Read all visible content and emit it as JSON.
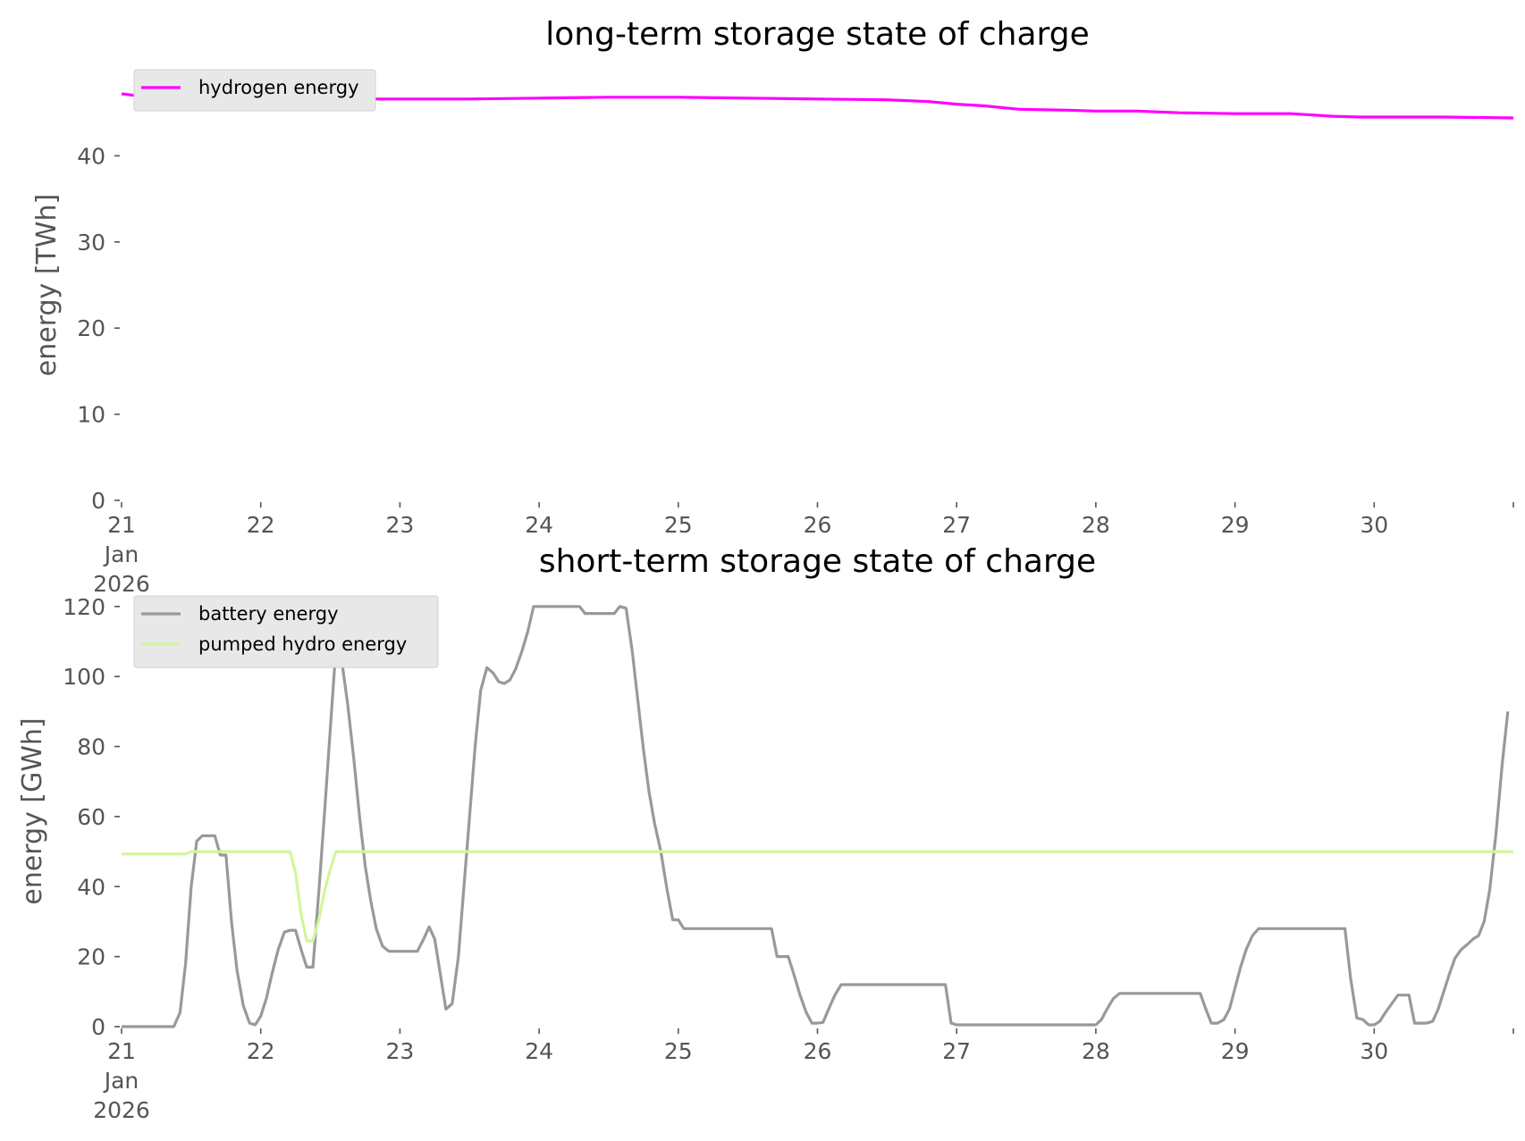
{
  "chart_data": [
    {
      "type": "line",
      "title": "long-term storage state of charge",
      "ylabel": "energy [TWh]",
      "xlabel": "",
      "ylim": [
        0,
        50
      ],
      "xlim": [
        0,
        10
      ],
      "yticks": [
        0,
        10,
        20,
        30,
        40
      ],
      "xtick_labels": [
        {
          "x": 0,
          "lines": [
            "21",
            "Jan",
            "2026"
          ]
        },
        {
          "x": 1,
          "lines": [
            "22"
          ]
        },
        {
          "x": 2,
          "lines": [
            "23"
          ]
        },
        {
          "x": 3,
          "lines": [
            "24"
          ]
        },
        {
          "x": 4,
          "lines": [
            "25"
          ]
        },
        {
          "x": 5,
          "lines": [
            "26"
          ]
        },
        {
          "x": 6,
          "lines": [
            "27"
          ]
        },
        {
          "x": 7,
          "lines": [
            "28"
          ]
        },
        {
          "x": 8,
          "lines": [
            "29"
          ]
        },
        {
          "x": 9,
          "lines": [
            "30"
          ]
        }
      ],
      "legend": "top-left",
      "grid": false,
      "series": [
        {
          "name": "hydrogen energy",
          "color": "#ff00ff",
          "points": [
            [
              0,
              47.2
            ],
            [
              0.2,
              46.8
            ],
            [
              0.5,
              46.6
            ],
            [
              1,
              46.6
            ],
            [
              1.5,
              46.6
            ],
            [
              2,
              46.6
            ],
            [
              2.5,
              46.6
            ],
            [
              3,
              46.7
            ],
            [
              3.5,
              46.8
            ],
            [
              4,
              46.8
            ],
            [
              4.5,
              46.7
            ],
            [
              5,
              46.6
            ],
            [
              5.5,
              46.5
            ],
            [
              5.8,
              46.3
            ],
            [
              6,
              46.0
            ],
            [
              6.2,
              45.8
            ],
            [
              6.45,
              45.4
            ],
            [
              6.8,
              45.3
            ],
            [
              7,
              45.2
            ],
            [
              7.3,
              45.2
            ],
            [
              7.6,
              45.0
            ],
            [
              8,
              44.9
            ],
            [
              8.4,
              44.9
            ],
            [
              8.7,
              44.6
            ],
            [
              8.9,
              44.5
            ],
            [
              9.5,
              44.5
            ],
            [
              10,
              44.4
            ]
          ]
        }
      ]
    },
    {
      "type": "line",
      "title": "short-term storage state of charge",
      "ylabel": "energy [GWh]",
      "xlabel": "",
      "ylim": [
        0,
        123
      ],
      "xlim": [
        0,
        10
      ],
      "yticks": [
        0,
        20,
        40,
        60,
        80,
        100,
        120
      ],
      "xtick_labels": [
        {
          "x": 0,
          "lines": [
            "21",
            "Jan",
            "2026"
          ]
        },
        {
          "x": 1,
          "lines": [
            "22"
          ]
        },
        {
          "x": 2,
          "lines": [
            "23"
          ]
        },
        {
          "x": 3,
          "lines": [
            "24"
          ]
        },
        {
          "x": 4,
          "lines": [
            "25"
          ]
        },
        {
          "x": 5,
          "lines": [
            "26"
          ]
        },
        {
          "x": 6,
          "lines": [
            "27"
          ]
        },
        {
          "x": 7,
          "lines": [
            "28"
          ]
        },
        {
          "x": 8,
          "lines": [
            "29"
          ]
        },
        {
          "x": 9,
          "lines": [
            "30"
          ]
        }
      ],
      "legend": "top-left",
      "grid": false,
      "series": [
        {
          "name": "battery energy",
          "color": "#999999",
          "points": [
            [
              0,
              0
            ],
            [
              0.375,
              0
            ],
            [
              0.42,
              4
            ],
            [
              0.46,
              18
            ],
            [
              0.5,
              40
            ],
            [
              0.54,
              53
            ],
            [
              0.58,
              54.5
            ],
            [
              0.625,
              54.5
            ],
            [
              0.67,
              54.5
            ],
            [
              0.71,
              49
            ],
            [
              0.75,
              49
            ],
            [
              0.79,
              30
            ],
            [
              0.83,
              16
            ],
            [
              0.875,
              6
            ],
            [
              0.92,
              1
            ],
            [
              0.96,
              0.5
            ],
            [
              1,
              3
            ],
            [
              1.04,
              8
            ],
            [
              1.08,
              15
            ],
            [
              1.125,
              22
            ],
            [
              1.17,
              27
            ],
            [
              1.21,
              27.5
            ],
            [
              1.25,
              27.5
            ],
            [
              1.29,
              22
            ],
            [
              1.33,
              17
            ],
            [
              1.375,
              17
            ],
            [
              1.42,
              40
            ],
            [
              1.46,
              62
            ],
            [
              1.5,
              85
            ],
            [
              1.54,
              108
            ],
            [
              1.58,
              105
            ],
            [
              1.625,
              92
            ],
            [
              1.67,
              76
            ],
            [
              1.71,
              60
            ],
            [
              1.75,
              46
            ],
            [
              1.79,
              36
            ],
            [
              1.83,
              28
            ],
            [
              1.875,
              23
            ],
            [
              1.92,
              21.5
            ],
            [
              1.96,
              21.5
            ],
            [
              2,
              21.5
            ],
            [
              2.125,
              21.5
            ],
            [
              2.17,
              25
            ],
            [
              2.21,
              28.5
            ],
            [
              2.25,
              25
            ],
            [
              2.29,
              15
            ],
            [
              2.33,
              5
            ],
            [
              2.375,
              6.5
            ],
            [
              2.42,
              20
            ],
            [
              2.46,
              40
            ],
            [
              2.5,
              60
            ],
            [
              2.54,
              80
            ],
            [
              2.58,
              96
            ],
            [
              2.625,
              102.5
            ],
            [
              2.67,
              101
            ],
            [
              2.71,
              98.5
            ],
            [
              2.75,
              98
            ],
            [
              2.79,
              99
            ],
            [
              2.83,
              102
            ],
            [
              2.875,
              107
            ],
            [
              2.92,
              113
            ],
            [
              2.96,
              120
            ],
            [
              3,
              120
            ],
            [
              3.29,
              120
            ],
            [
              3.33,
              118
            ],
            [
              3.375,
              118
            ],
            [
              3.54,
              118
            ],
            [
              3.58,
              120
            ],
            [
              3.625,
              119.5
            ],
            [
              3.67,
              107
            ],
            [
              3.71,
              93
            ],
            [
              3.75,
              79
            ],
            [
              3.79,
              67
            ],
            [
              3.83,
              58
            ],
            [
              3.875,
              50
            ],
            [
              3.92,
              39
            ],
            [
              3.96,
              30.5
            ],
            [
              4,
              30.5
            ],
            [
              4.04,
              28
            ],
            [
              4.08,
              28
            ],
            [
              4.67,
              28
            ],
            [
              4.71,
              20
            ],
            [
              4.79,
              20
            ],
            [
              4.83,
              15
            ],
            [
              4.875,
              9
            ],
            [
              4.92,
              4
            ],
            [
              4.96,
              1
            ],
            [
              5,
              1
            ],
            [
              5.04,
              1.2
            ],
            [
              5.08,
              5
            ],
            [
              5.125,
              9
            ],
            [
              5.17,
              12
            ],
            [
              5.21,
              12
            ],
            [
              5.92,
              12
            ],
            [
              5.96,
              1
            ],
            [
              6,
              0.5
            ],
            [
              7,
              0.5
            ],
            [
              7.04,
              2
            ],
            [
              7.08,
              5
            ],
            [
              7.125,
              8
            ],
            [
              7.17,
              9.5
            ],
            [
              7.21,
              9.5
            ],
            [
              7.75,
              9.5
            ],
            [
              7.79,
              5
            ],
            [
              7.83,
              1
            ],
            [
              7.875,
              1
            ],
            [
              7.92,
              2
            ],
            [
              7.96,
              5
            ],
            [
              8,
              11
            ],
            [
              8.04,
              17
            ],
            [
              8.08,
              22
            ],
            [
              8.125,
              26
            ],
            [
              8.17,
              28
            ],
            [
              8.21,
              28
            ],
            [
              8.79,
              28
            ],
            [
              8.83,
              14
            ],
            [
              8.875,
              2.5
            ],
            [
              8.92,
              2
            ],
            [
              8.96,
              0.5
            ],
            [
              9,
              0.5
            ],
            [
              9.04,
              1.5
            ],
            [
              9.08,
              4
            ],
            [
              9.125,
              6.5
            ],
            [
              9.17,
              9
            ],
            [
              9.21,
              9
            ],
            [
              9.25,
              9
            ],
            [
              9.29,
              1
            ],
            [
              9.375,
              1
            ],
            [
              9.42,
              1.5
            ],
            [
              9.46,
              5
            ],
            [
              9.5,
              10
            ],
            [
              9.54,
              15
            ],
            [
              9.58,
              19.5
            ],
            [
              9.625,
              22
            ],
            [
              9.67,
              23.5
            ],
            [
              9.71,
              25
            ],
            [
              9.75,
              26
            ],
            [
              9.79,
              30
            ],
            [
              9.83,
              39
            ],
            [
              9.875,
              55
            ],
            [
              9.92,
              75
            ],
            [
              9.96,
              90
            ]
          ]
        },
        {
          "name": "pumped hydro energy",
          "color": "#d4f59a",
          "points": [
            [
              0,
              49.3
            ],
            [
              0.46,
              49.3
            ],
            [
              0.5,
              50
            ],
            [
              1.21,
              50
            ],
            [
              1.25,
              44
            ],
            [
              1.29,
              32
            ],
            [
              1.33,
              24.5
            ],
            [
              1.375,
              24.5
            ],
            [
              1.42,
              31
            ],
            [
              1.46,
              39
            ],
            [
              1.5,
              45
            ],
            [
              1.54,
              50
            ],
            [
              10,
              50
            ]
          ]
        }
      ]
    }
  ]
}
